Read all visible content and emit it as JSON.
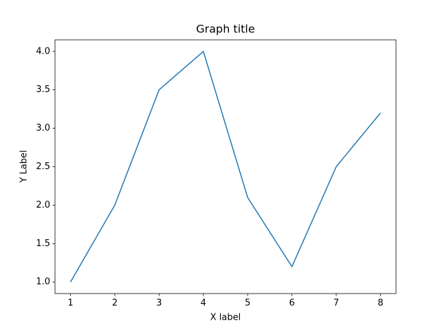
{
  "chart_data": {
    "type": "line",
    "title": "Graph title",
    "x_label": "X label",
    "y_label": "Y Label",
    "x": [
      1,
      2,
      3,
      4,
      5,
      6,
      7,
      8
    ],
    "series": [
      {
        "color": "#1f77b4",
        "values": [
          1.0,
          2.0,
          3.5,
          4.0,
          2.1,
          1.2,
          2.5,
          3.2
        ]
      }
    ],
    "xlim": [
      0.65,
      8.35
    ],
    "xticks": [
      1,
      2,
      3,
      4,
      5,
      6,
      7,
      8
    ],
    "ylim": [
      0.85,
      4.15
    ],
    "yticks": [
      {
        "value": 1,
        "label": "1.0"
      },
      1.5,
      {
        "value": 2,
        "label": "2.0"
      },
      2.5,
      {
        "value": 3,
        "label": "3.0"
      },
      3.5,
      {
        "value": 4,
        "label": "4.0"
      }
    ],
    "grid": false
  }
}
